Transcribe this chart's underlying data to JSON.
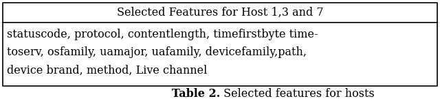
{
  "header": "Selected Features for Host 1,3 and 7",
  "body_lines": [
    "statuscode, protocol, contentlength, timefirstbyte time-",
    "toserv, osfamily, uamajor, uafamily, devicefamily,path,",
    "device brand, method, Live channel"
  ],
  "caption_bold": "Table 2.",
  "caption_normal": " Selected features for hosts",
  "fig_width": 6.4,
  "fig_height": 1.48,
  "dpi": 100,
  "bg_color": "#ffffff",
  "border_color": "#000000",
  "header_fontsize": 11.5,
  "body_fontsize": 11.5,
  "caption_fontsize": 11.5
}
